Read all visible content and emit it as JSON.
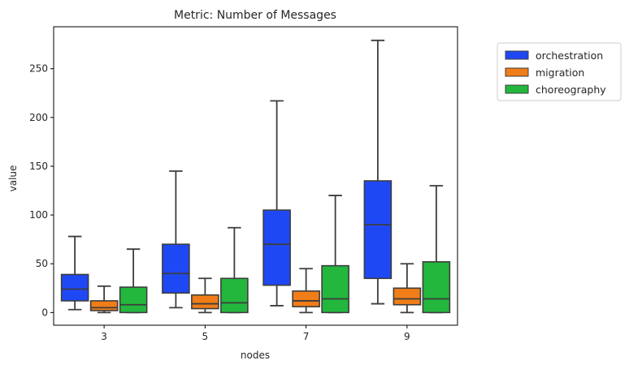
{
  "chart_data": {
    "type": "boxplot",
    "title": "Metric: Number of Messages",
    "xlabel": "nodes",
    "ylabel": "value",
    "categories": [
      "3",
      "5",
      "7",
      "9"
    ],
    "ylim": [
      -13,
      293
    ],
    "yticks": [
      0,
      50,
      100,
      150,
      200,
      250
    ],
    "grid": false,
    "legend_position": "outside-top-right",
    "series": [
      {
        "name": "orchestration",
        "color": "#1f48f5",
        "boxes": [
          {
            "whisker_low": 3,
            "q1": 12,
            "median": 24,
            "q3": 39,
            "whisker_high": 78
          },
          {
            "whisker_low": 5,
            "q1": 20,
            "median": 40,
            "q3": 70,
            "whisker_high": 145
          },
          {
            "whisker_low": 7,
            "q1": 28,
            "median": 70,
            "q3": 105,
            "whisker_high": 217
          },
          {
            "whisker_low": 9,
            "q1": 35,
            "median": 90,
            "q3": 135,
            "whisker_high": 279
          }
        ]
      },
      {
        "name": "migration",
        "color": "#f07d18",
        "boxes": [
          {
            "whisker_low": 0,
            "q1": 2,
            "median": 5,
            "q3": 12,
            "whisker_high": 27
          },
          {
            "whisker_low": 0,
            "q1": 4,
            "median": 9,
            "q3": 18,
            "whisker_high": 35
          },
          {
            "whisker_low": 0,
            "q1": 6,
            "median": 12,
            "q3": 22,
            "whisker_high": 45
          },
          {
            "whisker_low": 0,
            "q1": 8,
            "median": 14,
            "q3": 25,
            "whisker_high": 50
          }
        ]
      },
      {
        "name": "choreography",
        "color": "#23b73d",
        "boxes": [
          {
            "whisker_low": 0,
            "q1": 0,
            "median": 8,
            "q3": 26,
            "whisker_high": 65
          },
          {
            "whisker_low": 0,
            "q1": 0,
            "median": 10,
            "q3": 35,
            "whisker_high": 87
          },
          {
            "whisker_low": 0,
            "q1": 0,
            "median": 14,
            "q3": 48,
            "whisker_high": 120
          },
          {
            "whisker_low": 0,
            "q1": 0,
            "median": 14,
            "q3": 52,
            "whisker_high": 130
          }
        ]
      }
    ]
  }
}
